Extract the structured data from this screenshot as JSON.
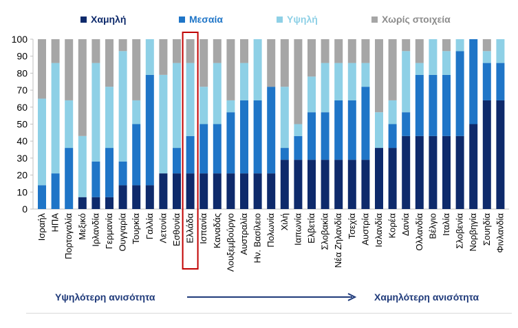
{
  "chart_data": {
    "type": "bar",
    "stacked": true,
    "title": "",
    "xlabel": "",
    "ylabel": "",
    "ylim": [
      0,
      100
    ],
    "yticks": [
      0,
      10,
      20,
      30,
      40,
      50,
      60,
      70,
      80,
      90,
      100
    ],
    "legend_position": "top",
    "highlight_category": "Ελλάδα",
    "categories": [
      "Ισραήλ",
      "ΗΠΑ",
      "Πορτογαλία",
      "Μεξικό",
      "Ιρλανδία",
      "Γερμανία",
      "Ουγγαρία",
      "Τουρκία",
      "Γαλλία",
      "Λετονία",
      "Εσθονία",
      "Ελλάδα",
      "Ισπανία",
      "Καναδάς",
      "Λουξεμβούργο",
      "Αυστραλία",
      "Ην. Βασίλειο",
      "Πολωνία",
      "Χιλή",
      "Ιαπωνία",
      "Ελβετία",
      "Σλοβακία",
      "Νέα Ζηλανδία",
      "Τσεχία",
      "Αυστρία",
      "Ισλανδία",
      "Κορέα",
      "Δανία",
      "Ολλανδία",
      "Βέλγιο",
      "Ιταλία",
      "Σλοβενία",
      "Νορβηγία",
      "Σουηδία",
      "Φινλανδία"
    ],
    "series": [
      {
        "name": "Χαμηλή",
        "color": "#0e2a6b",
        "values": [
          0,
          0,
          0,
          7,
          7,
          7,
          14,
          14,
          14,
          21,
          21,
          21,
          21,
          21,
          21,
          21,
          21,
          21,
          29,
          29,
          29,
          29,
          29,
          29,
          29,
          36,
          36,
          43,
          43,
          43,
          43,
          43,
          50,
          64,
          64
        ]
      },
      {
        "name": "Μεσαία",
        "color": "#1f75c7",
        "values": [
          14,
          21,
          36,
          0,
          21,
          29,
          14,
          36,
          65,
          0,
          15,
          22,
          29,
          29,
          36,
          43,
          43,
          51,
          7,
          14,
          28,
          28,
          35,
          35,
          43,
          0,
          14,
          14,
          36,
          36,
          36,
          50,
          50,
          22,
          22
        ]
      },
      {
        "name": "Υψηλή",
        "color": "#8ed0e6",
        "values": [
          51,
          65,
          28,
          36,
          58,
          36,
          65,
          14,
          21,
          58,
          50,
          43,
          22,
          36,
          7,
          22,
          36,
          0,
          36,
          7,
          21,
          29,
          22,
          22,
          14,
          21,
          14,
          36,
          7,
          21,
          14,
          7,
          0,
          7,
          14
        ]
      },
      {
        "name": "Χωρίς στοιχεία",
        "color": "#a6a6a6",
        "values": [
          35,
          14,
          36,
          57,
          14,
          28,
          7,
          36,
          0,
          21,
          14,
          14,
          28,
          14,
          36,
          14,
          0,
          28,
          28,
          50,
          22,
          14,
          14,
          14,
          14,
          43,
          36,
          7,
          14,
          0,
          7,
          0,
          0,
          7,
          0
        ]
      }
    ],
    "annotations": {
      "left": "Υψηλότερη ανισότητα",
      "right": "Χαμηλότερη ανισότητα"
    }
  }
}
